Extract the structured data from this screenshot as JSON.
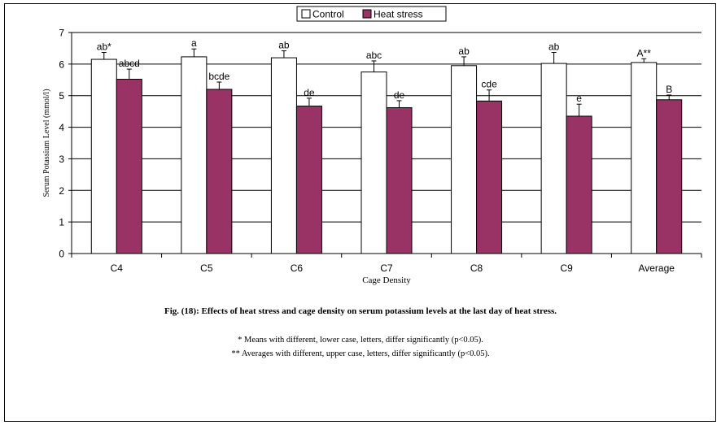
{
  "chart_data": {
    "type": "bar",
    "categories": [
      "C4",
      "C5",
      "C6",
      "C7",
      "C8",
      "C9",
      "Average"
    ],
    "series": [
      {
        "name": "Control",
        "color": "#ffffff",
        "values": [
          6.15,
          6.23,
          6.2,
          5.75,
          5.95,
          6.02,
          6.05
        ],
        "errors": [
          0.22,
          0.25,
          0.22,
          0.35,
          0.28,
          0.35,
          0.12
        ],
        "labels": [
          "ab*",
          "a",
          "ab",
          "abc",
          "ab",
          "ab",
          "A**"
        ]
      },
      {
        "name": "Heat stress",
        "color": "#993366",
        "values": [
          5.52,
          5.2,
          4.67,
          4.62,
          4.83,
          4.35,
          4.87
        ],
        "errors": [
          0.32,
          0.23,
          0.25,
          0.22,
          0.35,
          0.38,
          0.15
        ],
        "labels": [
          "abcd",
          "bcde",
          "de",
          "de",
          "cde",
          "e",
          "B"
        ]
      }
    ],
    "xlabel": "Cage Density",
    "ylabel": "Serum Potassium Level (mmol/l)",
    "ylim": [
      0,
      7
    ],
    "yticks": [
      0,
      1,
      2,
      3,
      4,
      5,
      6,
      7
    ],
    "grid": true,
    "legend": "top-center"
  },
  "caption": "Fig. (18): Effects of heat stress and cage density on serum potassium levels at the last day of heat stress.",
  "notes": [
    "* Means with different, lower case, letters, differ significantly (p<0.05).",
    "** Averages with different, upper case, letters, differ significantly (p<0.05)."
  ]
}
